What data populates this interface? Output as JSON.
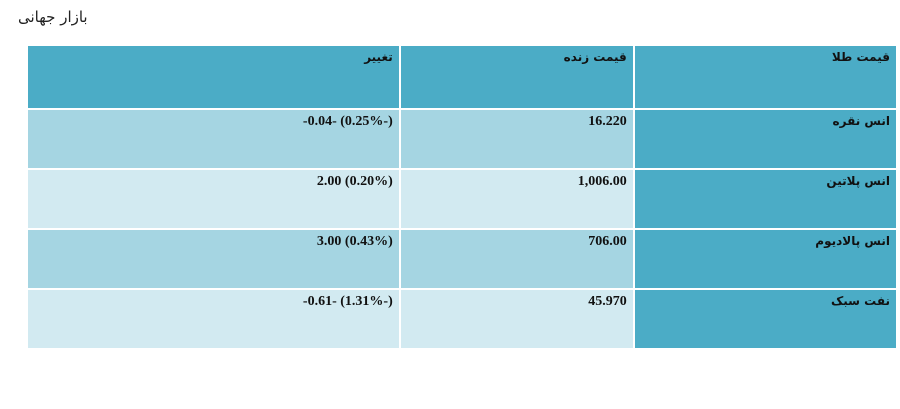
{
  "page": {
    "title": "بازار جهانی"
  },
  "table": {
    "headers": {
      "name": "قیمت طلا",
      "price": "قیمت زنده",
      "change": "تغییر"
    },
    "rows": [
      {
        "name": "انس نقره",
        "price": "16.220",
        "change": "(-0.25%) -0.04-"
      },
      {
        "name": "انس پلاتین",
        "price": "1,006.00",
        "change": "(0.20%) 2.00"
      },
      {
        "name": "انس پالادیوم",
        "price": "706.00",
        "change": "(0.43%) 3.00"
      },
      {
        "name": "نفت سبک",
        "price": "45.970",
        "change": "(-1.31%) -0.61-"
      }
    ]
  }
}
